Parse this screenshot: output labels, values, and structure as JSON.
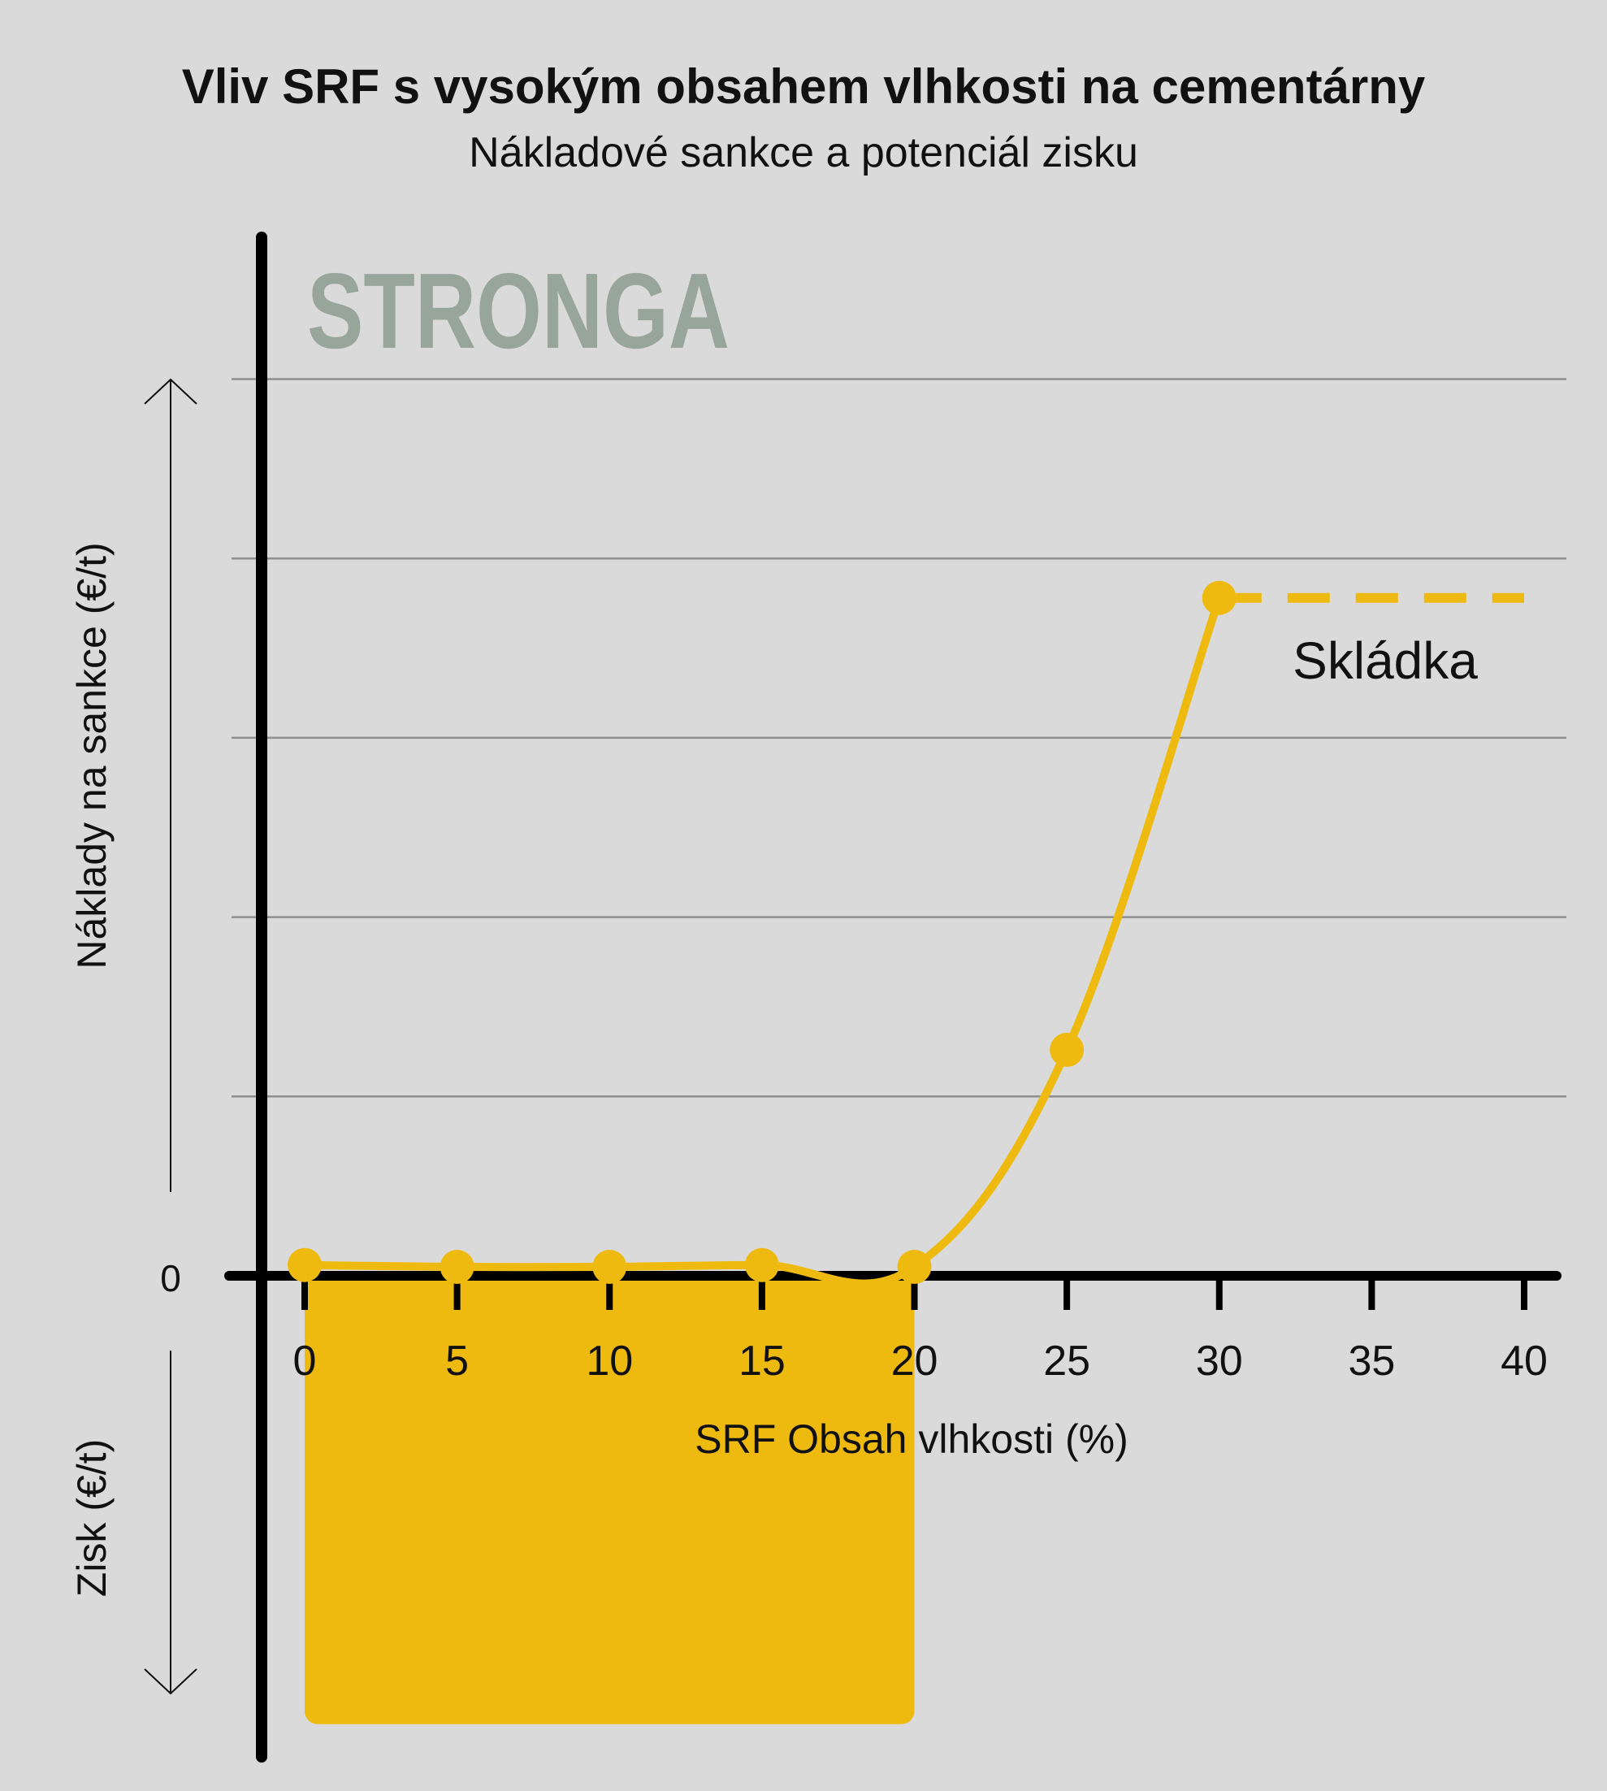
{
  "title": "Vliv SRF s vysokým obsahem vlhkosti na cementárny",
  "subtitle": "Nákladové sankce a potenciál zisku",
  "logo": "STRONGA",
  "colors": {
    "background": "#dadada",
    "series": "#efba10",
    "axis": "#000000",
    "grid": "#8e8e8e",
    "logo": "#97a59a"
  },
  "chart_data": {
    "type": "line",
    "xlabel": "SRF Obsah vlhkosti (%)",
    "ylabel_cost": "Náklady na sankce (€/t)",
    "ylabel_profit": "Zisk  (€/t)",
    "y_zero_label": "0",
    "x_ticks": [
      "0",
      "5",
      "10",
      "15",
      "20",
      "25",
      "30",
      "35",
      "40"
    ],
    "xlim": [
      0,
      40
    ],
    "ylim": [
      -25,
      50
    ],
    "grid": true,
    "gridlines_y": [
      10,
      20,
      30,
      40,
      50
    ],
    "series": [
      {
        "x": [
          0,
          5,
          10,
          15,
          20,
          25,
          30
        ],
        "y": [
          0.6,
          0.5,
          0.5,
          0.6,
          0.5,
          12.6,
          37.8
        ]
      }
    ],
    "extension": {
      "x": [
        30,
        40
      ],
      "y": [
        37.8,
        37.8
      ],
      "style": "dashed",
      "label": "Skládka"
    },
    "profit_area": {
      "x": [
        0,
        20
      ],
      "y": [
        0,
        -25
      ]
    }
  }
}
